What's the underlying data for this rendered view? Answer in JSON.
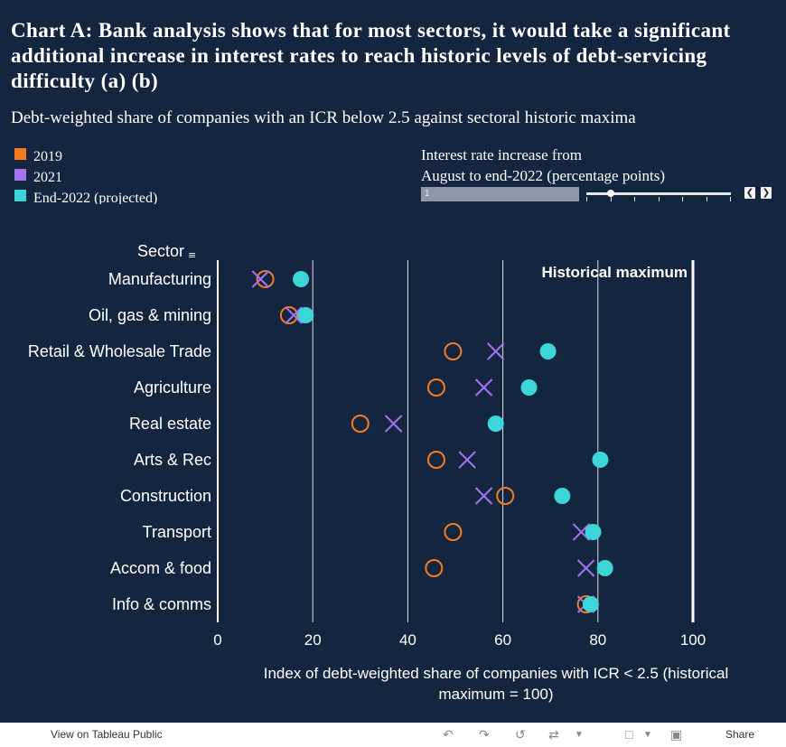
{
  "title": "Chart A: Bank analysis shows that for most sectors, it would take a significant additional increase in interest rates to reach historic levels of debt-servicing difficulty (a) (b)",
  "subtitle": "Debt-weighted share of companies with an ICR below 2.5 against sectoral historic maxima",
  "legend": [
    {
      "label": "2019",
      "color": "#f47b20"
    },
    {
      "label": "2021",
      "color": "#a374f0"
    },
    {
      "label": "End-2022 (projected)",
      "color": "#3dd6d8"
    }
  ],
  "slider": {
    "label": "Interest rate increase from\nAugust to end-2022 (percentage points)",
    "value": "1",
    "position": 0.17,
    "prev_icon": "chevron-left-icon",
    "next_icon": "chevron-right-icon"
  },
  "chart_data": {
    "type": "scatter",
    "row_header": "Sector",
    "categories": [
      "Manufacturing",
      "Oil, gas & mining",
      "Retail & Wholesale Trade",
      "Agriculture",
      "Real estate",
      "Arts & Rec",
      "Construction",
      "Transport",
      "Accom & food",
      "Info & comms"
    ],
    "series": [
      {
        "name": "2019",
        "marker": "circle-open",
        "color": "#f47b20",
        "values": [
          10,
          15,
          49.5,
          46,
          30,
          46,
          60.5,
          49.5,
          45.5,
          77.5
        ]
      },
      {
        "name": "2021",
        "marker": "x",
        "color": "#a374f0",
        "values": [
          9,
          16,
          58.5,
          56,
          37,
          52.5,
          56,
          76.5,
          77.5,
          77.5
        ]
      },
      {
        "name": "End-2022 (projected)",
        "marker": "circle-filled",
        "color": "#3dd6d8",
        "values": [
          17.5,
          18.5,
          69.5,
          65.5,
          58.5,
          80.5,
          72.5,
          79,
          81.5,
          78.5
        ]
      }
    ],
    "xlim": [
      0,
      100
    ],
    "xticks": [
      "0",
      "20",
      "40",
      "60",
      "80",
      "100"
    ],
    "xlabel": "Index of debt-weighted share of companies with ICR < 2.5 (historical maximum = 100)",
    "reference_line": {
      "value": 100,
      "label": "Historical maximum"
    },
    "grid": true
  },
  "footer": {
    "view_label": "View on Tableau Public",
    "share_label": "Share"
  }
}
